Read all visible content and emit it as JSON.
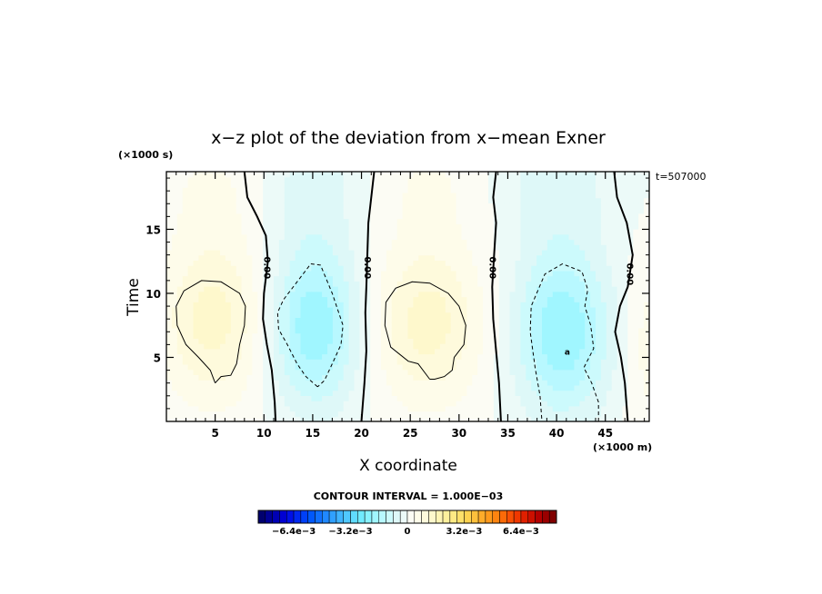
{
  "chart_data": {
    "type": "contour",
    "title": "x−z plot of the deviation from x−mean Exner",
    "xlabel": "X coordinate",
    "ylabel": "Time",
    "x_scale_label": "(×1000 m)",
    "y_scale_label": "(×1000 s)",
    "time_label": "t=507000",
    "xlim": [
      0,
      49.5
    ],
    "ylim": [
      0,
      19.5
    ],
    "x_ticks": [
      5,
      10,
      15,
      20,
      25,
      30,
      35,
      40,
      45
    ],
    "y_ticks": [
      5,
      10,
      15
    ],
    "x_tick_labels": [
      "5",
      "10",
      "15",
      "20",
      "25",
      "30",
      "35",
      "40",
      "45"
    ],
    "y_tick_labels": [
      "5",
      "10",
      "15"
    ],
    "contour_interval_text": "CONTOUR INTERVAL = 1.000E−03",
    "zero_contour_label": "0.00",
    "minimum_marker_label": "a",
    "zero_contours": [
      [
        [
          8.0,
          19.5
        ],
        [
          8.3,
          17.5
        ],
        [
          9.3,
          16.0
        ],
        [
          10.2,
          14.5
        ],
        [
          10.4,
          12.5
        ],
        [
          10.0,
          10.0
        ],
        [
          9.9,
          8.0
        ],
        [
          10.3,
          6.0
        ],
        [
          10.8,
          4.0
        ],
        [
          11.1,
          1.5
        ],
        [
          11.2,
          0
        ]
      ],
      [
        [
          21.3,
          19.5
        ],
        [
          21.0,
          17.5
        ],
        [
          20.7,
          15.5
        ],
        [
          20.6,
          13.0
        ],
        [
          20.5,
          10.5
        ],
        [
          20.4,
          8.5
        ],
        [
          20.5,
          5.5
        ],
        [
          20.3,
          3.0
        ],
        [
          20.0,
          0
        ]
      ],
      [
        [
          33.8,
          19.5
        ],
        [
          33.5,
          17.5
        ],
        [
          33.8,
          15.5
        ],
        [
          33.6,
          13.0
        ],
        [
          33.4,
          10.5
        ],
        [
          33.5,
          8.0
        ],
        [
          33.8,
          5.5
        ],
        [
          34.1,
          3.0
        ],
        [
          34.3,
          0
        ]
      ],
      [
        [
          45.9,
          19.5
        ],
        [
          46.2,
          17.5
        ],
        [
          47.2,
          15.5
        ],
        [
          47.8,
          13.0
        ],
        [
          47.3,
          10.5
        ],
        [
          46.5,
          9.0
        ],
        [
          46.0,
          7.0
        ],
        [
          46.6,
          5.0
        ],
        [
          47.0,
          3.0
        ],
        [
          47.3,
          0
        ]
      ]
    ],
    "positive_contours": [
      [
        [
          5.0,
          3.0
        ],
        [
          4.5,
          4.0
        ],
        [
          3.3,
          5.0
        ],
        [
          2.0,
          6.0
        ],
        [
          1.1,
          7.5
        ],
        [
          1.0,
          9.0
        ],
        [
          1.8,
          10.2
        ],
        [
          3.6,
          11.0
        ],
        [
          5.6,
          10.9
        ],
        [
          7.5,
          10.0
        ],
        [
          8.1,
          9.0
        ],
        [
          8.0,
          7.5
        ],
        [
          7.5,
          6.0
        ],
        [
          7.2,
          4.5
        ],
        [
          6.6,
          3.6
        ],
        [
          5.6,
          3.5
        ],
        [
          5.0,
          3.0
        ]
      ],
      [
        [
          27.0,
          3.3
        ],
        [
          25.8,
          4.5
        ],
        [
          24.8,
          4.7
        ],
        [
          23.0,
          5.8
        ],
        [
          22.4,
          7.5
        ],
        [
          22.5,
          9.3
        ],
        [
          23.5,
          10.4
        ],
        [
          25.2,
          10.9
        ],
        [
          27.0,
          10.8
        ],
        [
          28.9,
          10.0
        ],
        [
          30.0,
          9.0
        ],
        [
          30.7,
          7.5
        ],
        [
          30.5,
          6.0
        ],
        [
          29.5,
          5.0
        ],
        [
          29.3,
          4.0
        ],
        [
          28.5,
          3.5
        ],
        [
          27.5,
          3.3
        ],
        [
          27.0,
          3.3
        ]
      ]
    ],
    "negative_contours": [
      [
        [
          15.5,
          2.7
        ],
        [
          14.3,
          3.5
        ],
        [
          13.4,
          4.5
        ],
        [
          12.4,
          6.0
        ],
        [
          11.5,
          7.2
        ],
        [
          11.4,
          8.5
        ],
        [
          12.0,
          9.5
        ],
        [
          13.2,
          10.7
        ],
        [
          14.8,
          12.3
        ],
        [
          15.8,
          12.2
        ],
        [
          17.0,
          10.0
        ],
        [
          18.1,
          7.5
        ],
        [
          17.9,
          6.0
        ],
        [
          17.0,
          4.5
        ],
        [
          16.2,
          3.2
        ],
        [
          15.5,
          2.7
        ]
      ],
      [
        [
          44.3,
          0
        ],
        [
          44.3,
          1.5
        ],
        [
          43.6,
          3.0
        ],
        [
          42.8,
          4.2
        ],
        [
          43.8,
          5.7
        ],
        [
          43.5,
          7.5
        ],
        [
          42.9,
          9.0
        ],
        [
          43.2,
          10.3
        ],
        [
          42.6,
          11.7
        ],
        [
          40.6,
          12.3
        ],
        [
          38.8,
          11.5
        ],
        [
          37.4,
          9.0
        ],
        [
          37.3,
          7.0
        ],
        [
          37.8,
          4.2
        ],
        [
          38.3,
          2.0
        ],
        [
          38.5,
          0
        ]
      ]
    ],
    "anomaly_centers": [
      {
        "x": 4.8,
        "y": 8.0,
        "amp": 0.0014,
        "sx": 3.8,
        "sy": 4.6
      },
      {
        "x": 26.8,
        "y": 7.8,
        "amp": 0.0014,
        "sx": 4.0,
        "sy": 4.5
      },
      {
        "x": 15.2,
        "y": 7.5,
        "amp": -0.002,
        "sx": 3.2,
        "sy": 4.3
      },
      {
        "x": 40.6,
        "y": 7.0,
        "amp": -0.002,
        "sx": 3.4,
        "sy": 4.5
      },
      {
        "x": 49.5,
        "y": 6.0,
        "amp": 0.0006,
        "sx": 1.8,
        "sy": 5.0
      },
      {
        "x": 4.8,
        "y": 18.5,
        "amp": 0.0004,
        "sx": 4.0,
        "sy": 3.0
      },
      {
        "x": 27.0,
        "y": 18.5,
        "amp": 0.0004,
        "sx": 4.0,
        "sy": 3.0
      },
      {
        "x": 15.0,
        "y": 18.5,
        "amp": -0.0006,
        "sx": 3.5,
        "sy": 3.5
      },
      {
        "x": 40.0,
        "y": 18.5,
        "amp": -0.0006,
        "sx": 4.0,
        "sy": 3.5
      }
    ],
    "colorbar": {
      "min": -0.0084,
      "max": 0.0084,
      "step": 0.0004,
      "tick_values": [
        -0.0064,
        -0.0032,
        0,
        0.0032,
        0.0064
      ],
      "tick_labels": [
        "−6.4e−3",
        "−3.2e−3",
        "0",
        "3.2e−3",
        "6.4e−3"
      ],
      "colors": [
        "#00006e",
        "#000096",
        "#0000b4",
        "#0000d2",
        "#0010e6",
        "#0028f0",
        "#0040f8",
        "#0058fc",
        "#1070ff",
        "#2088ff",
        "#30a0ff",
        "#40b4ff",
        "#50c8ff",
        "#60dcff",
        "#70eaff",
        "#88f2ff",
        "#a0f6ff",
        "#b8f8ff",
        "#ccfafc",
        "#def8f8",
        "#ecfaf8",
        "#fcfcf4",
        "#fefcea",
        "#fefadc",
        "#fef8cc",
        "#fef4b4",
        "#fef09c",
        "#feea84",
        "#fee06a",
        "#fed250",
        "#fec03c",
        "#feac2a",
        "#fe9a1c",
        "#fe8410",
        "#fc6a08",
        "#f85004",
        "#f03800",
        "#e02000",
        "#cc1000",
        "#b40000",
        "#9a0000",
        "#800000"
      ]
    }
  }
}
